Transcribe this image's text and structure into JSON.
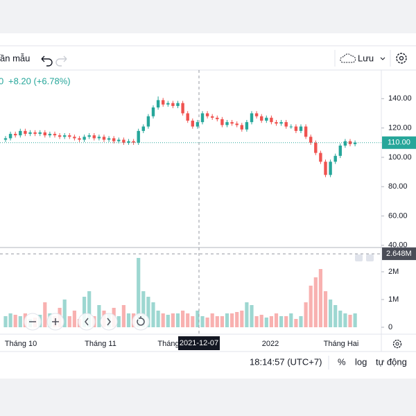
{
  "toolbar": {
    "template_label": "ần mẫu",
    "save_label": "Lưu"
  },
  "legend": {
    "last_digit": "0",
    "change": "+8.20 (+6.78%)"
  },
  "chart_data": {
    "type": "candlestick",
    "up_color": "#26a69a",
    "down_color": "#ef5350",
    "open": [
      112,
      113,
      116,
      115,
      118,
      116,
      117,
      116,
      117,
      115,
      116,
      115,
      114,
      115,
      114,
      113,
      112,
      114,
      115,
      113,
      114,
      112,
      113,
      111,
      112,
      110,
      111,
      110,
      118,
      121,
      128,
      134,
      139,
      136,
      137,
      135,
      137,
      130,
      125,
      121,
      124,
      130,
      128,
      127,
      126,
      122,
      124,
      123,
      122,
      119,
      124,
      130,
      128,
      125,
      127,
      124,
      123,
      124,
      121,
      121,
      118,
      121,
      114,
      110,
      103,
      97,
      88,
      97,
      101,
      108,
      111,
      109
    ],
    "high": [
      114.5,
      117.5,
      117.5,
      119.5,
      119.5,
      118.5,
      118.5,
      118.5,
      118.5,
      117.5,
      117.5,
      116.5,
      116.5,
      116.5,
      115.5,
      114.5,
      115.5,
      116.5,
      116.5,
      115.5,
      115.5,
      114.5,
      114.5,
      113.5,
      113.5,
      112.5,
      112.5,
      119.5,
      122.5,
      129.5,
      135.5,
      141.5,
      140.5,
      138.5,
      138.5,
      138.5,
      138.5,
      131.5,
      126.5,
      125.5,
      131.5,
      131.5,
      129.5,
      128.5,
      127.5,
      125.5,
      125.5,
      124.5,
      123.5,
      125.5,
      131.5,
      131.5,
      129.5,
      128.5,
      128.5,
      125.5,
      125.5,
      125.5,
      122.5,
      122.5,
      122.5,
      122.5,
      115.5,
      111.5,
      104.5,
      98.5,
      98.5,
      102.5,
      109.5,
      112.5,
      112.5,
      111.5
    ],
    "low": [
      110.5,
      111.5,
      113.5,
      113.5,
      114.5,
      114.5,
      114.5,
      114.5,
      113.5,
      113.5,
      113.5,
      112.5,
      112.5,
      112.5,
      111.5,
      110.5,
      110.5,
      112.5,
      111.5,
      111.5,
      110.5,
      110.5,
      109.5,
      109.5,
      108.5,
      108.5,
      108.5,
      108.5,
      116.5,
      119.5,
      126.5,
      132.5,
      134.5,
      134.5,
      133.5,
      133.5,
      128.5,
      123.5,
      119.5,
      119.5,
      122.5,
      126.5,
      125.5,
      124.5,
      120.5,
      120.5,
      121.5,
      120.5,
      117.5,
      117.5,
      122.5,
      126.5,
      123.5,
      123.5,
      122.5,
      121.5,
      121.5,
      119.5,
      119.5,
      116.5,
      116.5,
      112.5,
      108.5,
      101.5,
      95.5,
      86.5,
      86.5,
      95.5,
      99.5,
      106.5,
      107.5,
      107.5
    ],
    "close": [
      113,
      116,
      115,
      118,
      116,
      117,
      116,
      117,
      115,
      116,
      115,
      114,
      115,
      114,
      113,
      112,
      114,
      115,
      113,
      114,
      112,
      113,
      111,
      112,
      110,
      111,
      110,
      118,
      121,
      128,
      134,
      139,
      136,
      137,
      135,
      137,
      130,
      125,
      121,
      124,
      130,
      128,
      127,
      126,
      122,
      124,
      123,
      122,
      119,
      124,
      130,
      128,
      125,
      127,
      124,
      123,
      124,
      121,
      121,
      118,
      121,
      114,
      110,
      103,
      97,
      88,
      97,
      101,
      108,
      111,
      109,
      110
    ],
    "volume": [
      400000,
      500000,
      450000,
      400000,
      500000,
      300000,
      350000,
      450000,
      900000,
      500000,
      400000,
      700000,
      1000000,
      400000,
      600000,
      300000,
      1100000,
      1300000,
      400000,
      800000,
      600000,
      500000,
      700000,
      400000,
      800000,
      500000,
      500000,
      2500000,
      1300000,
      1100000,
      900000,
      600000,
      500000,
      450000,
      500000,
      500000,
      600000,
      500000,
      400000,
      600000,
      400000,
      350000,
      500000,
      400000,
      400000,
      500000,
      500000,
      550000,
      600000,
      900000,
      800000,
      400000,
      450000,
      350000,
      400000,
      500000,
      400000,
      400000,
      500000,
      300000,
      400000,
      900000,
      1500000,
      1800000,
      2100000,
      1300000,
      1000000,
      800000,
      600000,
      500000,
      450000,
      500000
    ],
    "ylim": [
      38.5,
      160
    ],
    "yticks": [
      {
        "value": 40,
        "label": "40.00"
      },
      {
        "value": 60,
        "label": "60.00"
      },
      {
        "value": 80,
        "label": "80.00"
      },
      {
        "value": 100,
        "label": "100.00"
      },
      {
        "value": 120,
        "label": "120.00"
      },
      {
        "value": 140,
        "label": "140.00"
      }
    ],
    "volume_ylim": [
      -200000,
      2800000
    ],
    "volume_yticks": [
      0,
      {
        "value": 1000000,
        "label": "1M"
      },
      {
        "value": 2000000,
        "label": "2M"
      }
    ],
    "last_price": {
      "value": 110,
      "label": "110.00"
    },
    "crosshair": {
      "date": "2021-12-07",
      "volume": {
        "value": 2648000,
        "label": "2.648M"
      }
    },
    "time_labels": [
      "Tháng 10",
      "Tháng 11",
      "Tháng",
      "2022",
      "Tháng Hai"
    ]
  },
  "status_bar": {
    "time": "18:14:57 (UTC+7)",
    "percent": "%",
    "log": "log",
    "auto": "tự động"
  }
}
